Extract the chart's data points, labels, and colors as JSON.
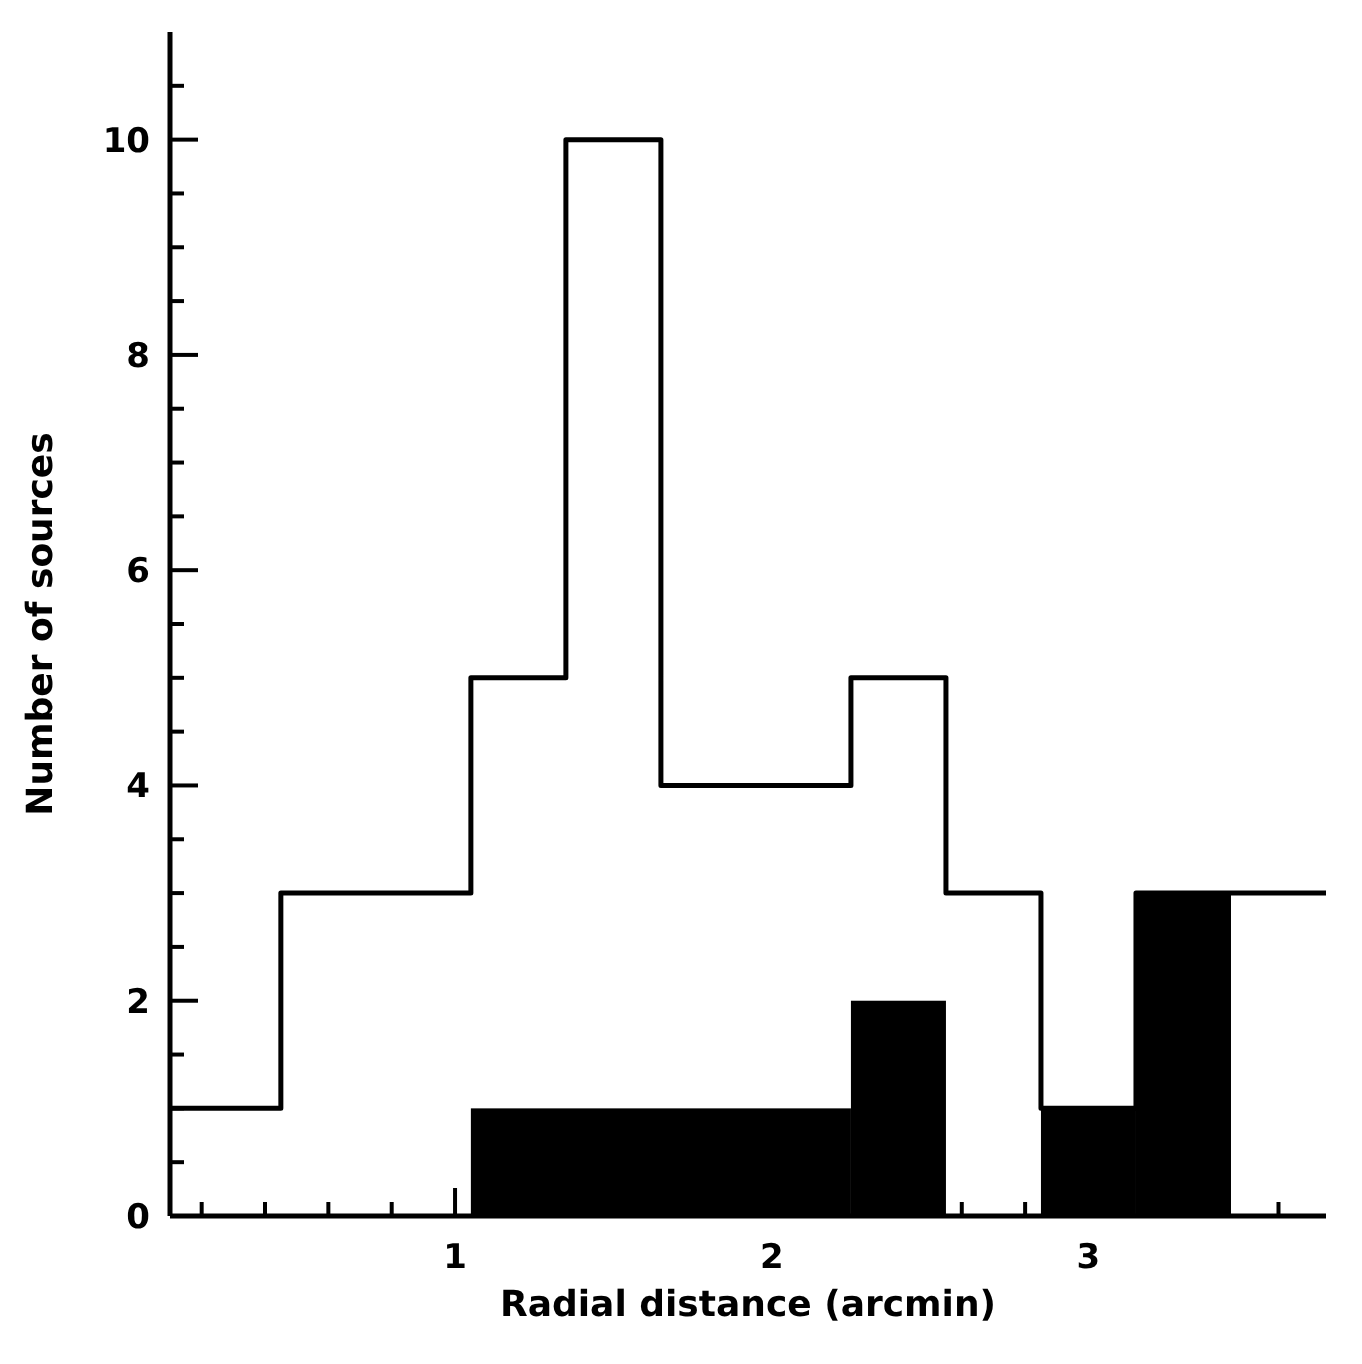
{
  "chart_data": {
    "type": "histogram",
    "xlabel": "Radial distance (arcmin)",
    "ylabel": "Number of sources",
    "bins": [
      1.05,
      2.25,
      2.55,
      2.85,
      3.15,
      3.45
    ],
    "series": [
      {
        "type": "step",
        "color": "#000000",
        "x": [
          0.1,
          0.45,
          0.75,
          1.05,
          1.35,
          1.65,
          1.95,
          2.25,
          2.55,
          2.85,
          3.15,
          3.45,
          3.75
        ],
        "values": [
          1,
          3,
          3,
          5,
          10,
          4,
          4,
          5,
          3,
          1,
          3,
          3,
          3
        ]
      },
      {
        "color": "#000000",
        "values": [
          1,
          2,
          0,
          1,
          3
        ]
      }
    ],
    "xlim": [
      0.1,
      3.75
    ],
    "xticks": [
      {
        "value": 0.2,
        "label": null
      },
      {
        "value": 0.4,
        "label": null
      },
      {
        "value": 0.6,
        "label": null
      },
      {
        "value": 0.8,
        "label": null
      },
      1,
      {
        "value": 1.2,
        "label": null
      },
      {
        "value": 1.4,
        "label": null
      },
      {
        "value": 1.6,
        "label": null
      },
      {
        "value": 1.8,
        "label": null
      },
      2,
      {
        "value": 2.2,
        "label": null
      },
      {
        "value": 2.4,
        "label": null
      },
      {
        "value": 2.6,
        "label": null
      },
      {
        "value": 2.8,
        "label": null
      },
      3,
      {
        "value": 3.2,
        "label": null
      },
      {
        "value": 3.4,
        "label": null
      },
      {
        "value": 3.6,
        "label": null
      }
    ],
    "ylim": [
      0,
      11
    ],
    "yticks": [
      0,
      {
        "value": 0.5,
        "label": null
      },
      {
        "value": 1,
        "label": null
      },
      {
        "value": 1.5,
        "label": null
      },
      2,
      {
        "value": 2.5,
        "label": null
      },
      {
        "value": 3,
        "label": null
      },
      {
        "value": 3.5,
        "label": null
      },
      4,
      {
        "value": 4.5,
        "label": null
      },
      {
        "value": 5,
        "label": null
      },
      {
        "value": 5.5,
        "label": null
      },
      6,
      {
        "value": 6.5,
        "label": null
      },
      {
        "value": 7,
        "label": null
      },
      {
        "value": 7.5,
        "label": null
      },
      8,
      {
        "value": 8.5,
        "label": null
      },
      {
        "value": 9,
        "label": null
      },
      {
        "value": 9.5,
        "label": null
      },
      10,
      {
        "value": 10.5,
        "label": null
      }
    ],
    "grid": false,
    "legend": false
  }
}
